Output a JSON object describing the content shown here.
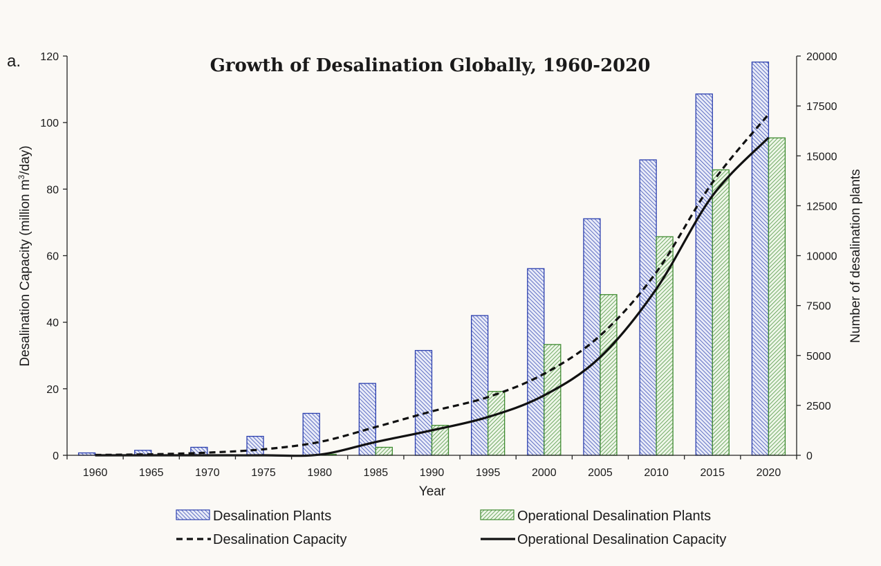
{
  "chart_data": {
    "type": "bar+line",
    "panel_label": "a.",
    "title": "Growth of Desalination Globally, 1960-2020",
    "xlabel": "Year",
    "ylabel_left_prefix": "Desalination Capacity (million m",
    "ylabel_left_sup": "3",
    "ylabel_left_suffix": "/day)",
    "ylabel_right": "Number of desalination plants",
    "categories": [
      "1960",
      "1965",
      "1970",
      "1975",
      "1980",
      "1985",
      "1990",
      "1995",
      "2000",
      "2005",
      "2010",
      "2015",
      "2020"
    ],
    "ylim_left": [
      0,
      120
    ],
    "yticks_left": [
      "0",
      "20",
      "40",
      "60",
      "80",
      "100",
      "120"
    ],
    "ylim_right": [
      0,
      20000
    ],
    "yticks_right": [
      "0",
      "2500",
      "5000",
      "7500",
      "10000",
      "12500",
      "15000",
      "17500",
      "20000"
    ],
    "bar_series": [
      {
        "name": "Desalination Plants",
        "axis": "right",
        "color": "#2b3fae",
        "values": [
          120,
          250,
          400,
          950,
          2100,
          3600,
          5250,
          7000,
          9350,
          11850,
          14800,
          18100,
          19700
        ]
      },
      {
        "name": "Operational Desalination Plants",
        "axis": "right",
        "color": "#3e8b30",
        "values": [
          0,
          0,
          0,
          0,
          50,
          400,
          1500,
          3200,
          5550,
          8050,
          10950,
          14300,
          15900
        ]
      }
    ],
    "line_series": [
      {
        "name": "Desalination Capacity",
        "axis": "left",
        "style": "dashed",
        "values": [
          0.1,
          0.3,
          0.8,
          1.8,
          4.0,
          8.5,
          13.2,
          17.5,
          24.5,
          36.0,
          55.0,
          82.0,
          102.5
        ]
      },
      {
        "name": "Operational Desalination Capacity",
        "axis": "left",
        "style": "solid",
        "values": [
          0,
          0,
          0,
          0,
          0.2,
          4.0,
          7.5,
          11.5,
          18.0,
          29.5,
          50.0,
          78.0,
          95.5
        ]
      }
    ],
    "legend": [
      {
        "label": "Desalination Plants",
        "kind": "bar",
        "series": 0
      },
      {
        "label": "Operational Desalination Plants",
        "kind": "bar",
        "series": 1
      },
      {
        "label": "Desalination Capacity",
        "kind": "line",
        "series": 0
      },
      {
        "label": "Operational Desalination Capacity",
        "kind": "line",
        "series": 1
      }
    ],
    "legend_position": "bottom",
    "grid": false
  }
}
